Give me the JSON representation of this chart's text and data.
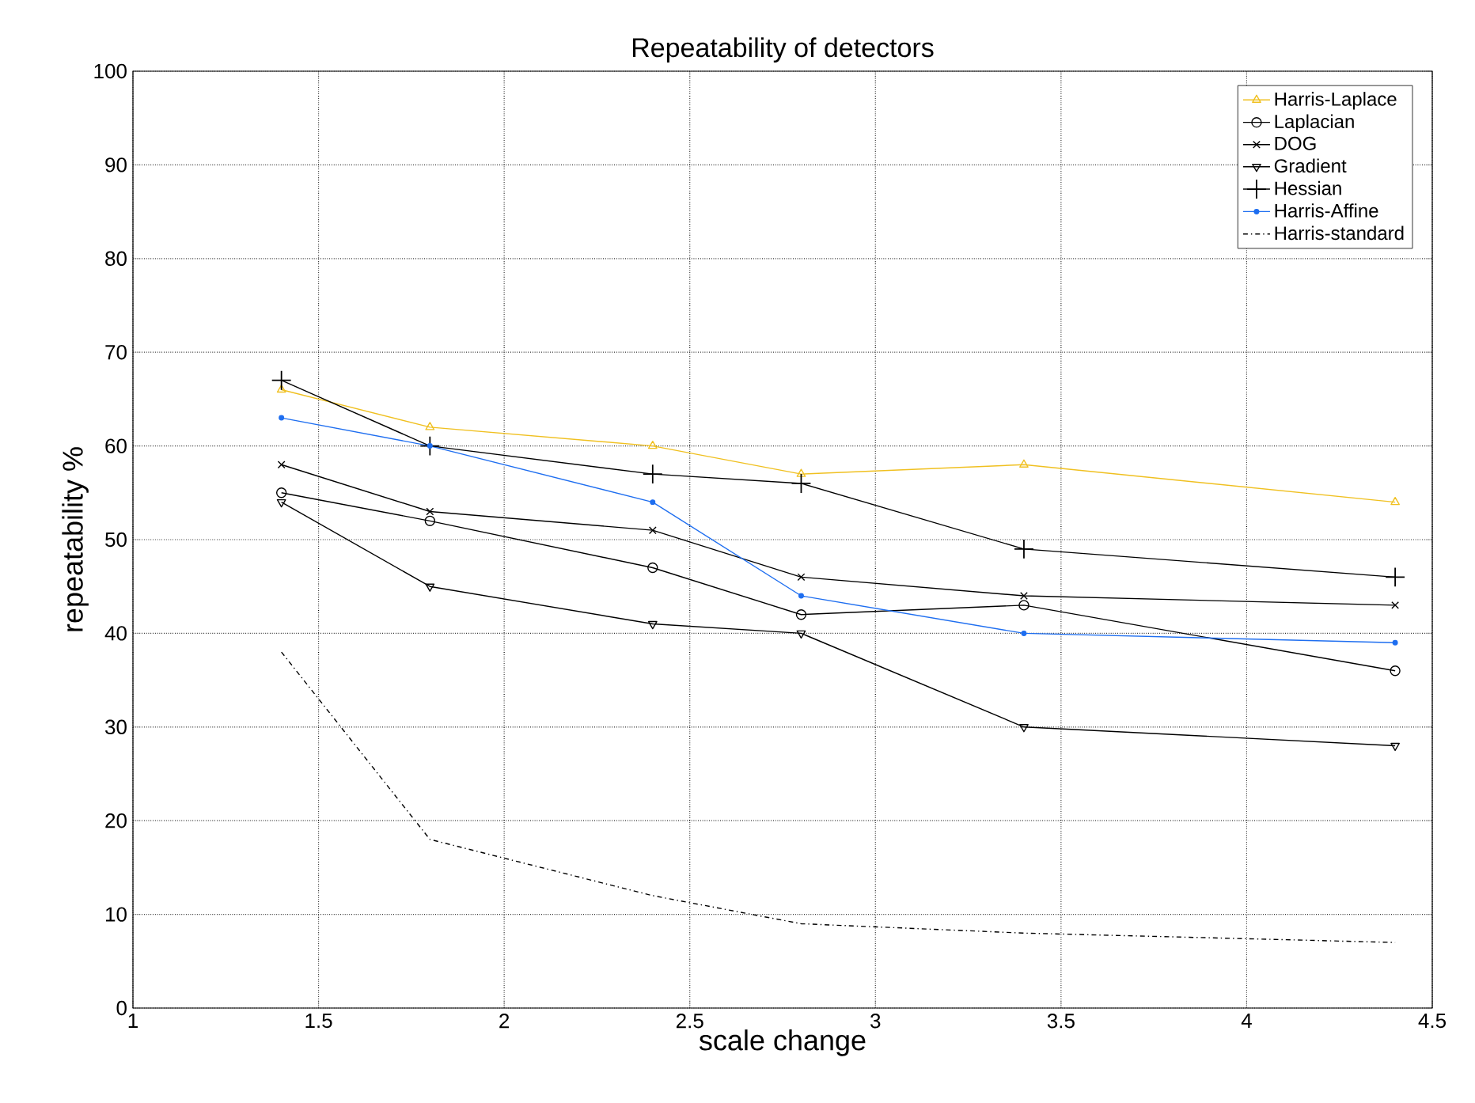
{
  "chart_data": {
    "type": "line",
    "title": "Repeatability of detectors",
    "xlabel": "scale change",
    "ylabel": "repeatability %",
    "x": [
      1.4,
      1.8,
      2.4,
      2.8,
      3.4,
      4.4
    ],
    "series": [
      {
        "name": "Harris-Laplace",
        "color": "#f0c020",
        "marker": "triangle",
        "values": [
          66,
          62,
          60,
          57,
          58,
          54
        ]
      },
      {
        "name": "Laplacian",
        "color": "#000000",
        "marker": "circle",
        "values": [
          55,
          52,
          47,
          42,
          43,
          36
        ]
      },
      {
        "name": "DOG",
        "color": "#000000",
        "marker": "cross",
        "values": [
          58,
          53,
          51,
          46,
          44,
          43
        ]
      },
      {
        "name": "Gradient",
        "color": "#000000",
        "marker": "triangle-down",
        "values": [
          54,
          45,
          41,
          40,
          30,
          28
        ]
      },
      {
        "name": "Hessian",
        "color": "#000000",
        "marker": "plus",
        "values": [
          67,
          60,
          57,
          56,
          49,
          46
        ]
      },
      {
        "name": "Harris-Affine",
        "color": "#1e6ef0",
        "marker": "dot",
        "values": [
          63,
          60,
          54,
          44,
          40,
          39
        ]
      },
      {
        "name": "Harris-standard",
        "color": "#000000",
        "marker": "none",
        "line_style": "dashdot",
        "values": [
          38,
          18,
          12,
          9,
          8,
          7
        ]
      }
    ],
    "xlim": [
      1,
      4.5
    ],
    "xticks": [
      1,
      1.5,
      2,
      2.5,
      3,
      3.5,
      4,
      4.5
    ],
    "ylim": [
      0,
      100
    ],
    "yticks": [
      0,
      10,
      20,
      30,
      40,
      50,
      60,
      70,
      80,
      90,
      100
    ],
    "grid": true,
    "legend": "top right"
  }
}
